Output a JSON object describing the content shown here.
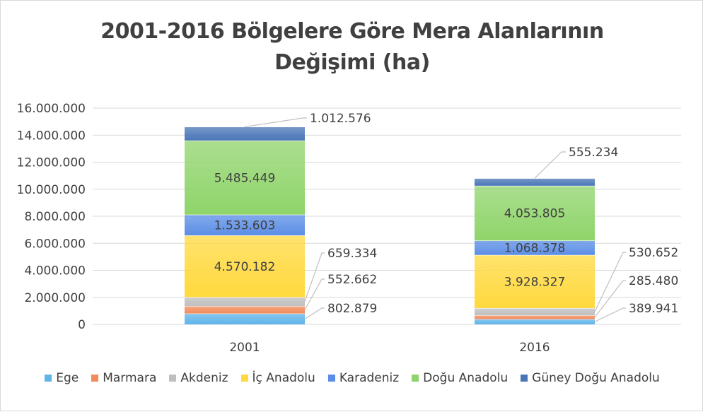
{
  "chart_data": {
    "type": "bar",
    "stacked": true,
    "title_lines": [
      "2001-2016 Bölgelere Göre Mera Alanlarının",
      "Değişimi (ha)"
    ],
    "categories": [
      "2001",
      "2016"
    ],
    "ylim": [
      0,
      16000000
    ],
    "yticks": [
      "0",
      "2.000.000",
      "4.000.000",
      "6.000.000",
      "8.000.000",
      "10.000.000",
      "12.000.000",
      "14.000.000",
      "16.000.000"
    ],
    "ytick_values": [
      0,
      2000000,
      4000000,
      6000000,
      8000000,
      10000000,
      12000000,
      14000000,
      16000000
    ],
    "grid": true,
    "legend_position": "bottom",
    "series": [
      {
        "name": "Ege",
        "color": "#5fb4e8",
        "values": [
          802879,
          389941
        ],
        "labels": [
          "802.879",
          "389.941"
        ]
      },
      {
        "name": "Marmara",
        "color": "#f28a5a",
        "values": [
          552662,
          285480
        ],
        "labels": [
          "552.662",
          "285.480"
        ]
      },
      {
        "name": "Akdeniz",
        "color": "#bfbfbf",
        "values": [
          659334,
          530652
        ],
        "labels": [
          "659.334",
          "530.652"
        ]
      },
      {
        "name": "İç Anadolu",
        "color": "#ffd93d",
        "values": [
          4570182,
          3928327
        ],
        "labels": [
          "4.570.182",
          "3.928.327"
        ]
      },
      {
        "name": "Karadeniz",
        "color": "#5b8ee6",
        "values": [
          1533603,
          1068378
        ],
        "labels": [
          "1.533.603",
          "1.068.378"
        ]
      },
      {
        "name": "Doğu Anadolu",
        "color": "#8fd46a",
        "values": [
          5485449,
          4053805
        ],
        "labels": [
          "5.485.449",
          "4.053.805"
        ]
      },
      {
        "name": "Güney Doğu Anadolu",
        "color": "#4a76b8",
        "values": [
          1012576,
          555234
        ],
        "labels": [
          "1.012.576",
          "555.234"
        ]
      }
    ]
  }
}
